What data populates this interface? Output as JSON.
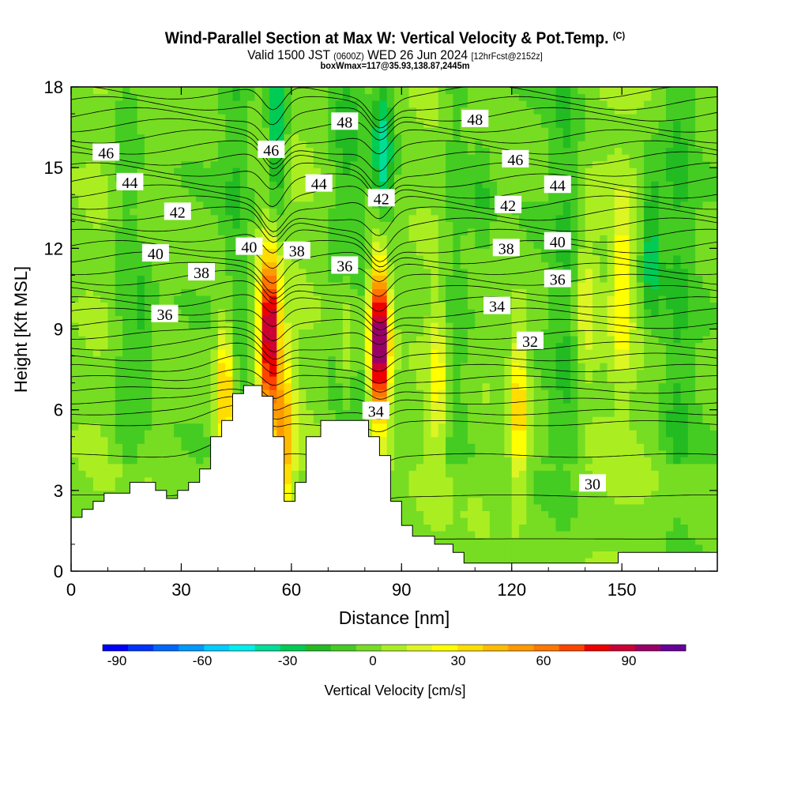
{
  "header": {
    "title": "Wind-Parallel Section at Max W: Vertical Velocity & Pot.Temp.",
    "title_mark": "(C)",
    "valid_prefix": "Valid 1500 JST",
    "valid_utc": "(0600Z)",
    "valid_date": "WED 26 Jun 2024",
    "forecast": "[12hrFcst@2152z]",
    "box_info": "boxWmax=117@35.93,138.87,2445m"
  },
  "chart_data": {
    "type": "heatmap",
    "title": "Wind-Parallel Section at Max W: Vertical Velocity & Pot.Temp.",
    "xlabel": "Distance [nm]",
    "ylabel": "Height [Kft MSL]",
    "xlim": [
      0,
      176
    ],
    "ylim": [
      0,
      18
    ],
    "x_ticks": [
      "0",
      "30",
      "60",
      "90",
      "120",
      "150"
    ],
    "y_ticks": [
      "0",
      "3",
      "6",
      "9",
      "12",
      "15",
      "18"
    ],
    "colorbar": {
      "label": "Vertical Velocity [cm/s]",
      "ticks": [
        "-90",
        "-60",
        "-30",
        "0",
        "30",
        "60",
        "90"
      ],
      "range": [
        -95,
        110
      ],
      "colors": [
        "#0000ff",
        "#0033ff",
        "#0066ff",
        "#0099ff",
        "#00ccff",
        "#00eeee",
        "#00dd99",
        "#00cc55",
        "#22bb22",
        "#44cc22",
        "#77dd22",
        "#aaee22",
        "#ddf522",
        "#ffff00",
        "#ffdd00",
        "#ffbb00",
        "#ff9900",
        "#ff7700",
        "#ff4400",
        "#ee0000",
        "#cc0033",
        "#990066",
        "#660099"
      ]
    },
    "velocity_cores": [
      {
        "x": 54,
        "y": 8.8,
        "w": 98
      },
      {
        "x": 84,
        "y": 8.5,
        "w": 115
      },
      {
        "x": 58,
        "y": 5.0,
        "w": 45
      },
      {
        "x": 42,
        "y": 6.5,
        "w": 50
      },
      {
        "x": 75,
        "y": 8.5,
        "w": 25
      },
      {
        "x": 122,
        "y": 6.0,
        "w": 40
      },
      {
        "x": 100,
        "y": 7.0,
        "w": 25
      },
      {
        "x": 140,
        "y": 10.0,
        "w": 20
      },
      {
        "x": 150,
        "y": 10.5,
        "w": 30
      },
      {
        "x": 56,
        "y": 16.5,
        "w": -40
      },
      {
        "x": 85,
        "y": 15.5,
        "w": -35
      },
      {
        "x": 158,
        "y": 12.0,
        "w": -30
      },
      {
        "x": 20,
        "y": 9.0,
        "w": -15
      },
      {
        "x": 112,
        "y": 14.0,
        "w": -15
      }
    ],
    "terrain": [
      [
        0,
        2.0
      ],
      [
        3,
        2.0
      ],
      [
        3,
        2.3
      ],
      [
        6,
        2.3
      ],
      [
        6,
        2.6
      ],
      [
        9,
        2.6
      ],
      [
        9,
        2.9
      ],
      [
        16,
        2.9
      ],
      [
        16,
        3.3
      ],
      [
        23,
        3.3
      ],
      [
        23,
        3.0
      ],
      [
        26,
        3.0
      ],
      [
        26,
        2.7
      ],
      [
        29,
        2.7
      ],
      [
        29,
        3.0
      ],
      [
        32,
        3.0
      ],
      [
        32,
        3.3
      ],
      [
        35,
        3.3
      ],
      [
        35,
        3.8
      ],
      [
        38,
        3.8
      ],
      [
        38,
        5.0
      ],
      [
        41,
        5.0
      ],
      [
        41,
        5.6
      ],
      [
        44,
        5.6
      ],
      [
        44,
        6.6
      ],
      [
        47,
        6.6
      ],
      [
        47,
        6.9
      ],
      [
        52,
        6.9
      ],
      [
        52,
        6.5
      ],
      [
        55,
        6.5
      ],
      [
        55,
        5.0
      ],
      [
        58,
        5.0
      ],
      [
        58,
        2.6
      ],
      [
        61,
        2.6
      ],
      [
        61,
        3.3
      ],
      [
        64,
        3.3
      ],
      [
        64,
        5.0
      ],
      [
        68,
        5.0
      ],
      [
        68,
        5.6
      ],
      [
        81,
        5.6
      ],
      [
        81,
        5.0
      ],
      [
        84,
        5.0
      ],
      [
        84,
        4.3
      ],
      [
        87,
        4.3
      ],
      [
        87,
        2.6
      ],
      [
        90,
        2.6
      ],
      [
        90,
        1.7
      ],
      [
        93,
        1.7
      ],
      [
        93,
        1.3
      ],
      [
        99,
        1.3
      ],
      [
        99,
        1.0
      ],
      [
        104,
        1.0
      ],
      [
        104,
        0.7
      ],
      [
        107,
        0.7
      ],
      [
        107,
        0.3
      ],
      [
        149,
        0.3
      ],
      [
        149,
        0.7
      ],
      [
        176,
        0.7
      ]
    ],
    "isentropes": {
      "count": 34,
      "bottom_levels": [
        1.2,
        2.8,
        4.3,
        5.5
      ],
      "top_level": 17.8,
      "labels": [
        {
          "text": "46",
          "x": 9.5,
          "y": 15.55
        },
        {
          "text": "44",
          "x": 16,
          "y": 14.45
        },
        {
          "text": "42",
          "x": 29,
          "y": 13.35
        },
        {
          "text": "40",
          "x": 23,
          "y": 11.8
        },
        {
          "text": "38",
          "x": 35.5,
          "y": 11.1
        },
        {
          "text": "36",
          "x": 25.5,
          "y": 9.55
        },
        {
          "text": "46",
          "x": 54.5,
          "y": 15.65
        },
        {
          "text": "40",
          "x": 48.5,
          "y": 12.05
        },
        {
          "text": "38",
          "x": 61.5,
          "y": 11.9
        },
        {
          "text": "36",
          "x": 74.5,
          "y": 11.35
        },
        {
          "text": "44",
          "x": 67.5,
          "y": 14.4
        },
        {
          "text": "48",
          "x": 74.5,
          "y": 16.7
        },
        {
          "text": "42",
          "x": 84.5,
          "y": 13.85
        },
        {
          "text": "34",
          "x": 83,
          "y": 5.95
        },
        {
          "text": "48",
          "x": 110,
          "y": 16.8
        },
        {
          "text": "46",
          "x": 121,
          "y": 15.3
        },
        {
          "text": "44",
          "x": 132.5,
          "y": 14.35
        },
        {
          "text": "42",
          "x": 119,
          "y": 13.6
        },
        {
          "text": "40",
          "x": 132.5,
          "y": 12.25
        },
        {
          "text": "38",
          "x": 118.5,
          "y": 12.0
        },
        {
          "text": "36",
          "x": 132.5,
          "y": 10.85
        },
        {
          "text": "34",
          "x": 116,
          "y": 9.85
        },
        {
          "text": "32",
          "x": 125,
          "y": 8.55
        },
        {
          "text": "30",
          "x": 142,
          "y": 3.25
        }
      ]
    }
  }
}
